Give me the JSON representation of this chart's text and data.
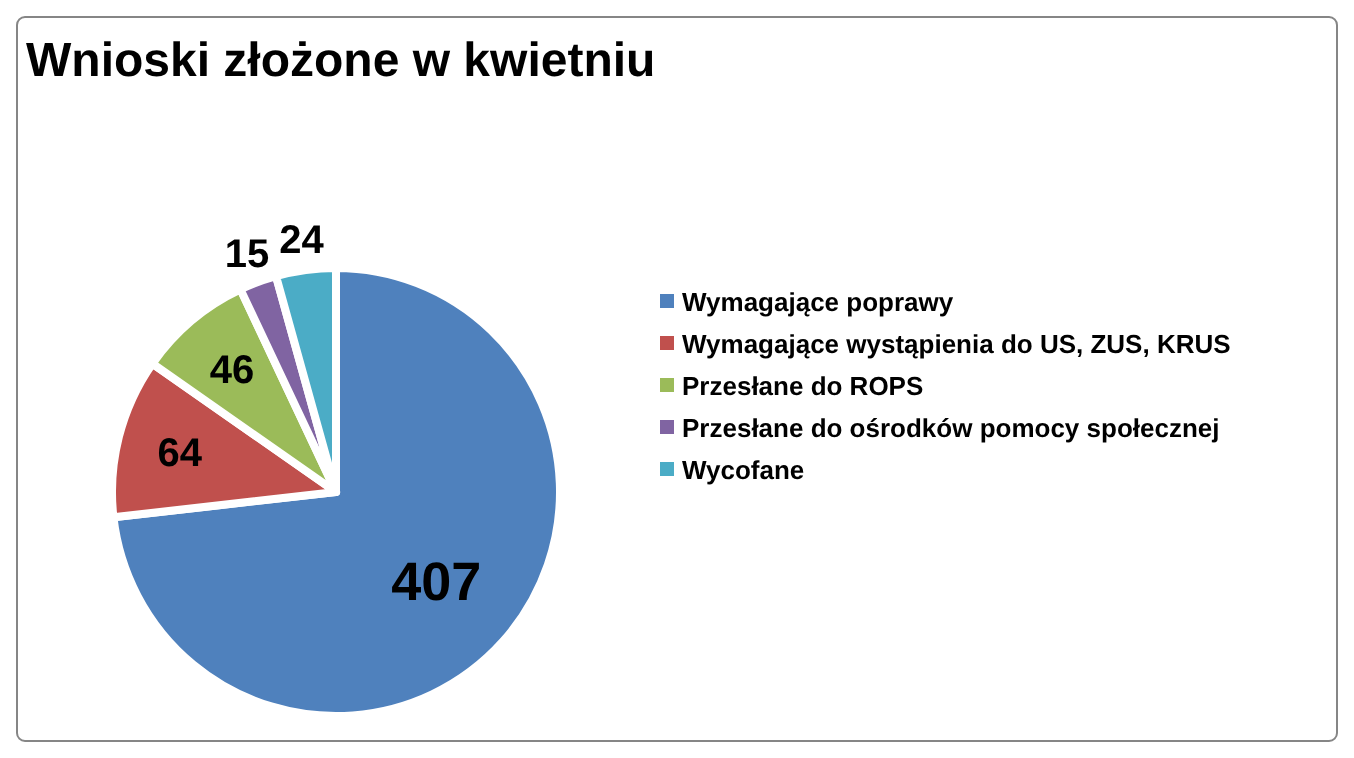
{
  "chart_data": {
    "type": "pie",
    "title": "Wnioski złożone w kwietniu",
    "categories": [
      "Wymagające poprawy",
      "Wymagające wystąpienia do US, ZUS, KRUS",
      "Przesłane do ROPS",
      "Przesłane do ośrodków pomocy społecznej",
      "Wycofane"
    ],
    "values": [
      407,
      64,
      46,
      15,
      24
    ],
    "colors": [
      "#4f81bd",
      "#c0504d",
      "#9bbb59",
      "#8064a2",
      "#4bacc6"
    ],
    "data_labels": true,
    "legend": "right"
  }
}
